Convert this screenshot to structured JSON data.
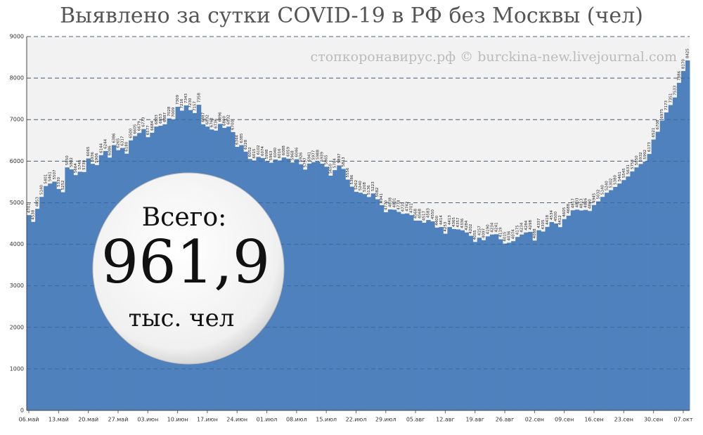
{
  "chart_data": {
    "type": "bar",
    "title": "Выявлено за сутки COVID-19 в РФ без Москвы (чел)",
    "watermark": "стопкоронавирус.рф © burckina-new.livejournal.com",
    "total_label": "Всего:",
    "total_value": "961,9",
    "total_unit": "тыс. чел",
    "color": "#4f81bd",
    "grid": true,
    "ylim": [
      0,
      9000
    ],
    "yticks": [
      0,
      1000,
      2000,
      3000,
      4000,
      5000,
      6000,
      7000,
      8000,
      9000
    ],
    "categories": [
      "06.май",
      null,
      null,
      null,
      null,
      null,
      null,
      "13.май",
      null,
      null,
      null,
      null,
      null,
      null,
      "20.май",
      null,
      null,
      null,
      null,
      null,
      null,
      "27.май",
      null,
      null,
      null,
      null,
      null,
      null,
      "03.июн",
      null,
      null,
      null,
      null,
      null,
      null,
      "10.июн",
      null,
      null,
      null,
      null,
      null,
      null,
      "17.июн",
      null,
      null,
      null,
      null,
      null,
      null,
      "24.июн",
      null,
      null,
      null,
      null,
      null,
      null,
      "01.июл",
      null,
      null,
      null,
      null,
      null,
      null,
      "08.июл",
      null,
      null,
      null,
      null,
      null,
      null,
      "15.июл",
      null,
      null,
      null,
      null,
      null,
      null,
      "22.июл",
      null,
      null,
      null,
      null,
      null,
      null,
      "29.июл",
      null,
      null,
      null,
      null,
      null,
      null,
      "05.авг",
      null,
      null,
      null,
      null,
      null,
      null,
      "12.авг",
      null,
      null,
      null,
      null,
      null,
      null,
      "19.авг",
      null,
      null,
      null,
      null,
      null,
      null,
      "26.авг",
      null,
      null,
      null,
      null,
      null,
      null,
      "02.сен",
      null,
      null,
      null,
      null,
      null,
      null,
      "09.сен",
      null,
      null,
      null,
      null,
      null,
      null,
      "16.сен",
      null,
      null,
      null,
      null,
      null,
      null,
      "23.сен",
      null,
      null,
      null,
      null,
      null,
      null,
      "30.сен",
      null,
      null,
      null,
      null,
      null,
      null,
      "07.окт",
      null
    ],
    "values": [
      4701,
      4538,
      4853,
      5140,
      5401,
      5461,
      5507,
      5330,
      5252,
      5850,
      5802,
      5664,
      5745,
      5738,
      6065,
      5936,
      5906,
      6144,
      6244,
      6086,
      6386,
      6265,
      6317,
      6180,
      6500,
      6605,
      6679,
      6773,
      6577,
      6684,
      6833,
      6853,
      6887,
      7028,
      7009,
      7309,
      7216,
      7343,
      7230,
      7157,
      7358,
      6887,
      6832,
      6762,
      6736,
      6896,
      6800,
      6832,
      6700,
      6344,
      6385,
      6228,
      6052,
      6015,
      6102,
      6074,
      5998,
      5963,
      6040,
      6016,
      6088,
      6059,
      5968,
      6046,
      5926,
      5797,
      5941,
      5977,
      5988,
      5939,
      5865,
      5650,
      5784,
      5897,
      5813,
      5556,
      5386,
      5262,
      5240,
      5208,
      5136,
      5223,
      5082,
      4941,
      4770,
      4838,
      4831,
      4778,
      4731,
      4742,
      4701,
      4568,
      4568,
      4517,
      4583,
      4550,
      4400,
      4414,
      4253,
      4413,
      4365,
      4357,
      4336,
      4284,
      4202,
      4055,
      4157,
      4097,
      4190,
      4234,
      4241,
      4119,
      4015,
      4036,
      4074,
      4175,
      4234,
      4284,
      4298,
      4088,
      4337,
      4305,
      4418,
      4534,
      4500,
      4412,
      4605,
      4688,
      4817,
      4833,
      4813,
      4826,
      4800,
      4945,
      5032,
      5140,
      5240,
      5302,
      5380,
      5461,
      5545,
      5631,
      5753,
      5850,
      5932,
      5992,
      6173,
      6521,
      6708,
      6975,
      7173,
      7351,
      7533,
      7886,
      8170,
      8425
    ]
  }
}
